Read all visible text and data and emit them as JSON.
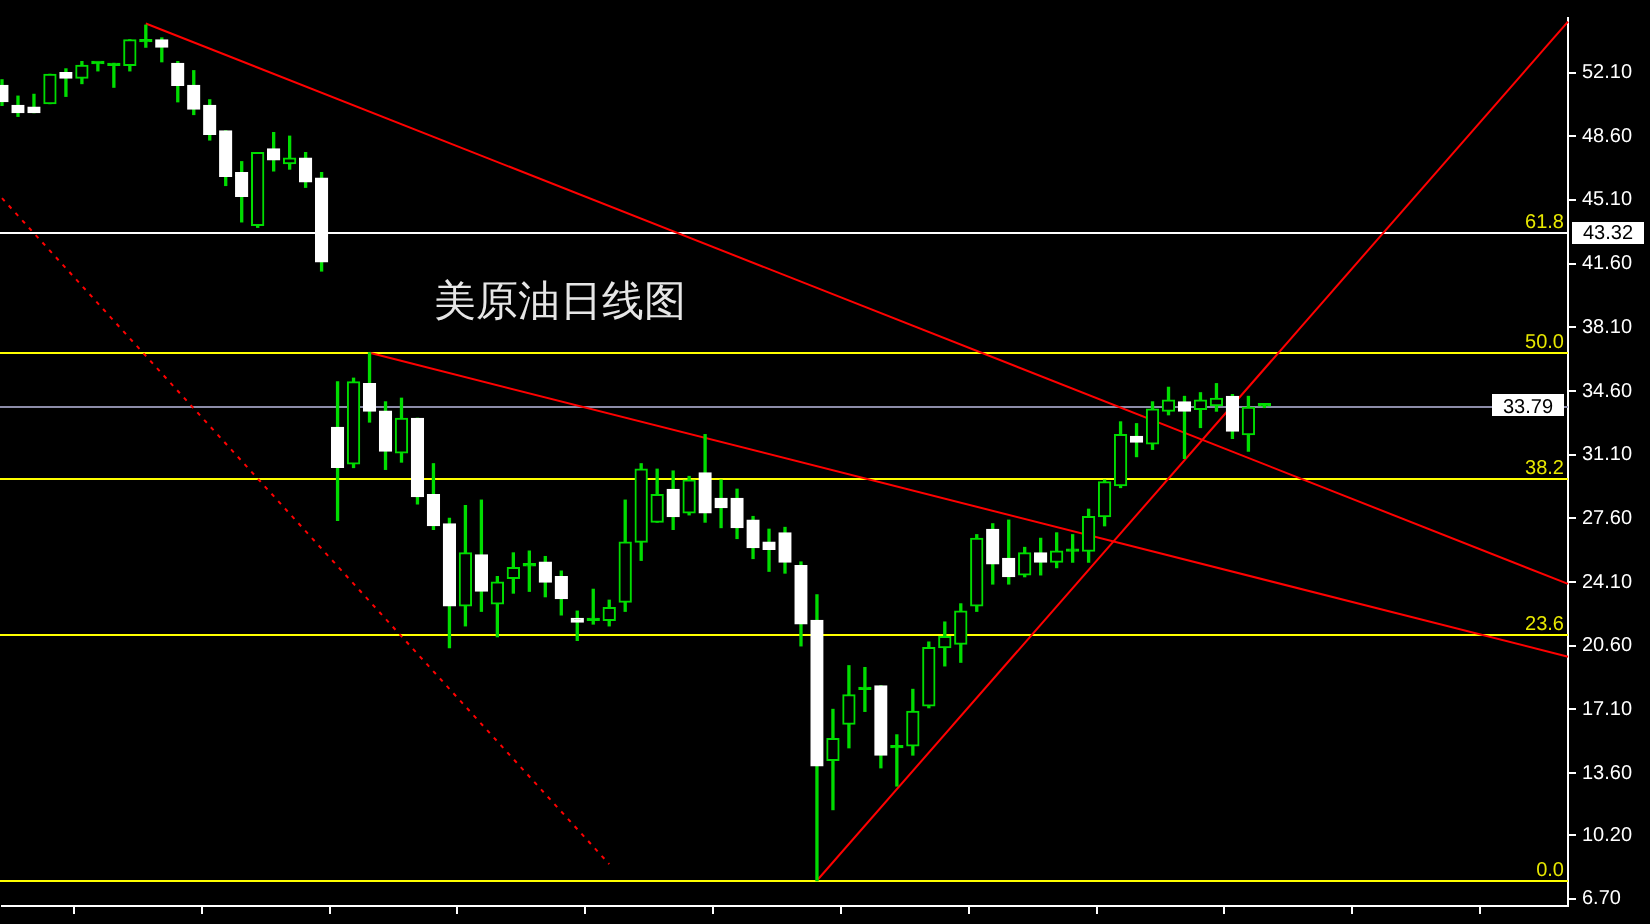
{
  "chart_data": {
    "type": "candlestick",
    "title": "美原油日线图",
    "color": "#00dd00",
    "tick_labels": "y",
    "categories": [
      null,
      null,
      null,
      null,
      null,
      null,
      null,
      null,
      null,
      null,
      null,
      null,
      null,
      null,
      null,
      null,
      null,
      null,
      null,
      null,
      null,
      null,
      null,
      null,
      null,
      null,
      null,
      null,
      null,
      null,
      null,
      null,
      null,
      null,
      null,
      null,
      null,
      null,
      null,
      null,
      null,
      null,
      null,
      null,
      null,
      null,
      null,
      null,
      null,
      null,
      null,
      null,
      null,
      null,
      null,
      null,
      null,
      null,
      null,
      null,
      null,
      null,
      null,
      null,
      null,
      null,
      null,
      null,
      null,
      null,
      null,
      null,
      null,
      null,
      null,
      null,
      null,
      null,
      null,
      null,
      null,
      null,
      null,
      null,
      null,
      null,
      null,
      null,
      null,
      null,
      null,
      null,
      null,
      null,
      null,
      null,
      null,
      null,
      null
    ],
    "ohlc": [
      [
        51.4,
        51.7,
        50.3,
        50.5
      ],
      [
        50.3,
        50.8,
        49.7,
        49.9
      ],
      [
        50.2,
        50.9,
        49.9,
        49.9
      ],
      [
        50.4,
        52.0,
        50.4,
        52.0
      ],
      [
        52.1,
        52.3,
        50.8,
        51.8
      ],
      [
        51.8,
        52.7,
        51.5,
        52.5
      ],
      [
        52.6,
        52.6,
        52.2,
        52.6
      ],
      [
        52.5,
        52.6,
        51.3,
        52.5
      ],
      [
        52.5,
        53.9,
        52.2,
        53.9
      ],
      [
        53.8,
        54.7,
        53.5,
        53.8
      ],
      [
        53.9,
        54.0,
        52.7,
        53.5
      ],
      [
        52.6,
        52.7,
        50.5,
        51.4
      ],
      [
        51.4,
        52.2,
        49.8,
        50.1
      ],
      [
        50.3,
        50.6,
        48.4,
        48.7
      ],
      [
        48.9,
        48.9,
        45.9,
        46.4
      ],
      [
        46.6,
        47.2,
        43.9,
        45.3
      ],
      [
        43.7,
        47.7,
        43.6,
        47.7
      ],
      [
        47.9,
        48.8,
        46.7,
        47.3
      ],
      [
        47.1,
        48.6,
        46.8,
        47.4
      ],
      [
        47.4,
        47.7,
        45.8,
        46.1
      ],
      [
        46.3,
        46.6,
        41.2,
        41.7
      ],
      [
        32.6,
        35.1,
        27.5,
        30.4
      ],
      [
        30.6,
        35.3,
        30.4,
        35.1
      ],
      [
        35.0,
        36.7,
        32.9,
        33.5
      ],
      [
        33.5,
        34.0,
        30.3,
        31.3
      ],
      [
        31.2,
        34.2,
        30.7,
        33.1
      ],
      [
        33.1,
        33.1,
        28.4,
        28.8
      ],
      [
        28.9,
        30.6,
        27.0,
        27.2
      ],
      [
        27.3,
        27.6,
        20.5,
        22.8
      ],
      [
        22.8,
        28.3,
        21.7,
        25.7
      ],
      [
        25.6,
        28.6,
        22.5,
        23.6
      ],
      [
        22.9,
        24.4,
        21.1,
        24.1
      ],
      [
        24.3,
        25.7,
        23.5,
        24.9
      ],
      [
        25.0,
        25.8,
        23.6,
        25.0
      ],
      [
        25.2,
        25.5,
        23.3,
        24.1
      ],
      [
        24.4,
        24.7,
        22.3,
        23.2
      ],
      [
        22.1,
        22.5,
        20.9,
        21.9
      ],
      [
        22.0,
        23.7,
        21.8,
        22.0
      ],
      [
        22.0,
        23.1,
        21.7,
        22.7
      ],
      [
        23.0,
        28.6,
        22.5,
        26.3
      ],
      [
        26.3,
        30.6,
        25.3,
        30.3
      ],
      [
        27.4,
        30.3,
        27.4,
        28.9
      ],
      [
        29.2,
        30.2,
        27.0,
        27.7
      ],
      [
        27.9,
        29.9,
        27.8,
        29.7
      ],
      [
        30.1,
        32.2,
        27.4,
        27.9
      ],
      [
        28.7,
        29.7,
        27.1,
        28.2
      ],
      [
        28.7,
        29.2,
        26.5,
        27.1
      ],
      [
        27.5,
        27.7,
        25.4,
        26.0
      ],
      [
        26.3,
        27.0,
        24.7,
        25.9
      ],
      [
        26.8,
        27.1,
        24.6,
        25.2
      ],
      [
        25.0,
        25.2,
        20.6,
        21.8
      ],
      [
        22.0,
        23.4,
        7.7,
        14.0
      ],
      [
        14.3,
        17.1,
        11.6,
        15.5
      ],
      [
        16.3,
        19.5,
        15.0,
        17.9
      ],
      [
        18.2,
        19.4,
        17.0,
        18.2
      ],
      [
        18.4,
        18.4,
        13.9,
        14.6
      ],
      [
        15.0,
        15.7,
        12.9,
        15.0
      ],
      [
        15.1,
        18.2,
        14.6,
        17.0
      ],
      [
        17.3,
        20.8,
        17.2,
        20.5
      ],
      [
        20.5,
        21.9,
        19.5,
        21.1
      ],
      [
        20.7,
        22.9,
        19.7,
        22.5
      ],
      [
        22.8,
        26.7,
        22.5,
        26.5
      ],
      [
        27.0,
        27.3,
        24.0,
        25.1
      ],
      [
        25.4,
        27.5,
        24.0,
        24.4
      ],
      [
        24.5,
        26.0,
        24.4,
        25.7
      ],
      [
        25.7,
        26.5,
        24.5,
        25.2
      ],
      [
        25.2,
        26.8,
        24.9,
        25.8
      ],
      [
        25.8,
        26.7,
        25.2,
        25.8
      ],
      [
        25.8,
        28.1,
        25.2,
        27.7
      ],
      [
        27.7,
        29.7,
        27.2,
        29.6
      ],
      [
        29.4,
        32.9,
        29.3,
        32.2
      ],
      [
        32.1,
        32.8,
        31.0,
        31.8
      ],
      [
        31.7,
        34.0,
        31.4,
        33.6
      ],
      [
        33.5,
        34.8,
        33.3,
        34.1
      ],
      [
        34.0,
        34.3,
        30.9,
        33.5
      ],
      [
        33.6,
        34.5,
        32.6,
        34.1
      ],
      [
        33.8,
        35.0,
        33.5,
        34.2
      ],
      [
        34.3,
        34.4,
        32.0,
        32.4
      ],
      [
        32.2,
        34.3,
        31.3,
        33.7
      ],
      [
        33.79,
        33.9,
        33.7,
        33.79
      ],
      null,
      null,
      null,
      null,
      null,
      null,
      null,
      null,
      null,
      null,
      null,
      null,
      null,
      null,
      null,
      null,
      null,
      null,
      null
    ],
    "colors": [
      "#ffffff",
      "#ffffff",
      "#ffffff",
      "#00dd00",
      "#ffffff",
      "#00dd00",
      "#00dd00",
      "#00dd00",
      "#00dd00",
      "#00dd00",
      "#ffffff",
      "#ffffff",
      "#ffffff",
      "#ffffff",
      "#ffffff",
      "#ffffff",
      "#00dd00",
      "#ffffff",
      "#00dd00",
      "#ffffff",
      "#ffffff",
      "#ffffff",
      "#00dd00",
      "#ffffff",
      "#ffffff",
      "#00dd00",
      "#ffffff",
      "#ffffff",
      "#ffffff",
      "#00dd00",
      "#ffffff",
      "#00dd00",
      "#00dd00",
      "#00dd00",
      "#ffffff",
      "#ffffff",
      "#ffffff",
      "#00dd00",
      "#00dd00",
      "#00dd00",
      "#00dd00",
      "#00dd00",
      "#ffffff",
      "#00dd00",
      "#ffffff",
      "#ffffff",
      "#ffffff",
      "#ffffff",
      "#ffffff",
      "#ffffff",
      "#ffffff",
      "#ffffff",
      "#00dd00",
      "#00dd00",
      "#00dd00",
      "#ffffff",
      "#00dd00",
      "#00dd00",
      "#00dd00",
      "#00dd00",
      "#00dd00",
      "#00dd00",
      "#ffffff",
      "#ffffff",
      "#00dd00",
      "#ffffff",
      "#00dd00",
      "#00dd00",
      "#00dd00",
      "#00dd00",
      "#00dd00",
      "#ffffff",
      "#00dd00",
      "#00dd00",
      "#ffffff",
      "#00dd00",
      "#00dd00",
      "#ffffff",
      "#00dd00",
      "#00dd00",
      null,
      null,
      null,
      null,
      null,
      null,
      null,
      null,
      null,
      null,
      null,
      null,
      null,
      null,
      null,
      null,
      null,
      null,
      null
    ],
    "series": [
      {
        "type": "line",
        "color": "#ff0000",
        "values": [
          null,
          null,
          null,
          null,
          null,
          null,
          null,
          null,
          null,
          54.8,
          null,
          null,
          null,
          null,
          null,
          null,
          null,
          null,
          null,
          null,
          null,
          null,
          null,
          null,
          null,
          null,
          null,
          null,
          null,
          null,
          null,
          null,
          null,
          null,
          null,
          null,
          null,
          null,
          null,
          null,
          null,
          null,
          null,
          null,
          null,
          null,
          null,
          null,
          null,
          null,
          null,
          null,
          null,
          null,
          null,
          null,
          null,
          null,
          null,
          null,
          null,
          null,
          null,
          null,
          null,
          null,
          null,
          null,
          null,
          null,
          null,
          null,
          null,
          null,
          null,
          null,
          null,
          null,
          null,
          null,
          null,
          null,
          null,
          null,
          null,
          null,
          null,
          null,
          null,
          null,
          null,
          null,
          null,
          null,
          null,
          null,
          null,
          null,
          24.0
        ]
      },
      {
        "type": "line",
        "color": "#ff0000",
        "values": [
          null,
          null,
          null,
          null,
          null,
          null,
          null,
          null,
          null,
          null,
          null,
          null,
          null,
          null,
          null,
          null,
          null,
          null,
          null,
          null,
          null,
          null,
          null,
          36.7,
          null,
          null,
          null,
          null,
          null,
          null,
          null,
          null,
          null,
          null,
          null,
          null,
          null,
          null,
          null,
          null,
          null,
          null,
          null,
          null,
          null,
          null,
          null,
          null,
          null,
          null,
          null,
          null,
          null,
          null,
          null,
          null,
          null,
          null,
          null,
          null,
          null,
          null,
          null,
          null,
          null,
          null,
          null,
          null,
          null,
          null,
          null,
          null,
          null,
          null,
          null,
          null,
          null,
          null,
          null,
          null,
          null,
          null,
          null,
          null,
          null,
          null,
          null,
          null,
          null,
          null,
          null,
          null,
          null,
          null,
          null,
          null,
          null,
          null,
          20.0
        ]
      },
      {
        "type": "line",
        "color": "#ff0000",
        "values": [
          null,
          null,
          null,
          null,
          null,
          null,
          null,
          null,
          null,
          null,
          null,
          null,
          null,
          null,
          null,
          null,
          null,
          null,
          null,
          null,
          null,
          null,
          null,
          null,
          null,
          null,
          null,
          null,
          null,
          null,
          null,
          null,
          null,
          null,
          null,
          null,
          null,
          null,
          null,
          null,
          null,
          null,
          null,
          null,
          null,
          null,
          null,
          null,
          null,
          null,
          null,
          7.7,
          null,
          null,
          null,
          null,
          null,
          null,
          null,
          null,
          null,
          null,
          null,
          null,
          null,
          null,
          null,
          null,
          null,
          null,
          null,
          null,
          null,
          null,
          null,
          null,
          null,
          null,
          null,
          null,
          null,
          null,
          null,
          null,
          null,
          null,
          null,
          null,
          null,
          null,
          null,
          null,
          null,
          null,
          null,
          null,
          null,
          null,
          54.9
        ]
      },
      {
        "type": "line",
        "color": "#ff0000",
        "line_style": "dotted",
        "values": [
          45.2,
          null,
          null,
          null,
          null,
          null,
          null,
          null,
          null,
          null,
          null,
          null,
          null,
          null,
          null,
          null,
          null,
          null,
          null,
          null,
          null,
          null,
          null,
          null,
          null,
          null,
          null,
          null,
          null,
          null,
          null,
          null,
          null,
          null,
          null,
          null,
          null,
          null,
          8.6,
          null,
          null,
          null,
          null,
          null,
          null,
          null,
          null,
          null,
          null,
          null,
          null,
          null,
          null,
          null,
          null,
          null,
          null,
          null,
          null,
          null,
          null,
          null,
          null,
          null,
          null,
          null,
          null,
          null,
          null,
          null,
          null,
          null,
          null,
          null,
          null,
          null,
          null,
          null,
          null,
          null,
          null,
          null,
          null,
          null,
          null,
          null,
          null,
          null,
          null,
          null,
          null,
          null,
          null,
          null,
          null,
          null,
          null,
          null,
          null
        ]
      }
    ],
    "ylim": [
      6.3,
      55.1
    ],
    "yticks": [
      {
        "value": 52.1,
        "label": "52.10"
      },
      {
        "value": 48.6,
        "label": "48.60"
      },
      {
        "value": 45.1,
        "label": "45.10"
      },
      {
        "value": 41.6,
        "label": "41.60"
      },
      {
        "value": 38.1,
        "label": "38.10"
      },
      {
        "value": 34.6,
        "label": "34.60"
      },
      {
        "value": 31.1,
        "label": "31.10"
      },
      {
        "value": 27.6,
        "label": "27.60"
      },
      {
        "value": 24.1,
        "label": "24.10"
      },
      {
        "value": 20.6,
        "label": "20.60"
      },
      {
        "value": 17.1,
        "label": "17.10"
      },
      {
        "value": 13.6,
        "label": "13.60"
      },
      {
        "value": 10.2,
        "label": "10.20"
      },
      {
        "value": 6.7,
        "label": "6.70"
      }
    ],
    "ref_lines": [
      {
        "axis": "y",
        "value": 43.32,
        "label": "43.32",
        "color": "#ffffff"
      },
      {
        "axis": "y",
        "value": 36.7,
        "color": "#ffff00"
      },
      {
        "axis": "y",
        "value": 29.8,
        "color": "#ffff00"
      },
      {
        "axis": "y",
        "value": 21.3,
        "color": "#ffff00"
      },
      {
        "axis": "y",
        "value": 7.7,
        "color": "#ffff00"
      },
      {
        "axis": "y",
        "value": 33.79,
        "label": "33.79",
        "color": "#8c8ca8"
      }
    ],
    "annotations": [
      {
        "text": "61.8",
        "y": 43.32
      },
      {
        "text": "50.0",
        "y": 36.7
      },
      {
        "text": "38.2",
        "y": 29.8
      },
      {
        "text": "23.6",
        "y": 21.3
      },
      {
        "text": "0.0",
        "y": 7.7
      }
    ]
  }
}
